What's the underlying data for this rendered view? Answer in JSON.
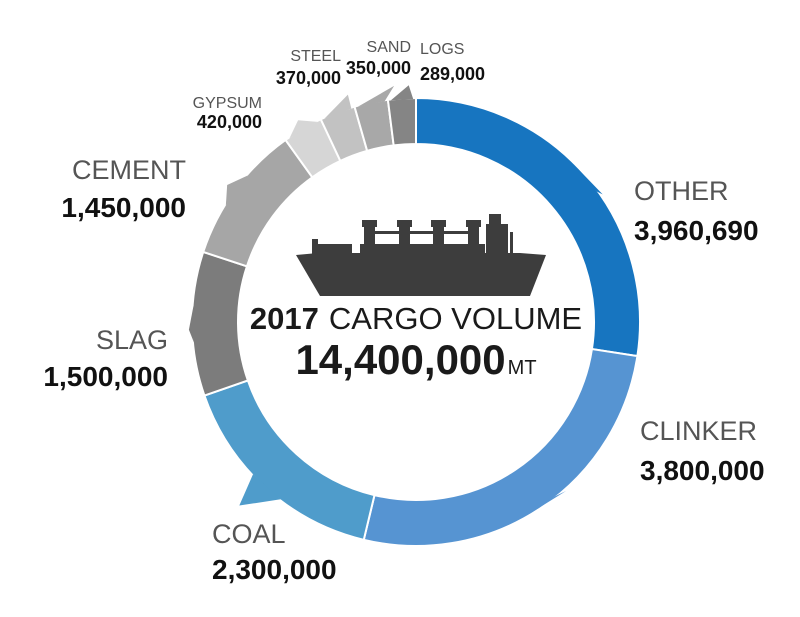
{
  "chart_data": {
    "type": "pie",
    "title_year": "2017",
    "title_rest": "CARGO VOLUME",
    "total": "14,400,000",
    "total_unit": "MT",
    "slices": [
      {
        "name": "OTHER",
        "value": 3960690,
        "label": "3,960,690",
        "color": "#1775c0"
      },
      {
        "name": "CLINKER",
        "value": 3800000,
        "label": "3,800,000",
        "color": "#5694d2"
      },
      {
        "name": "COAL",
        "value": 2300000,
        "label": "2,300,000",
        "color": "#4f9ccb"
      },
      {
        "name": "SLAG",
        "value": 1500000,
        "label": "1,500,000",
        "color": "#7c7c7c"
      },
      {
        "name": "CEMENT",
        "value": 1450000,
        "label": "1,450,000",
        "color": "#a6a6a6"
      },
      {
        "name": "GYPSUM",
        "value": 420000,
        "label": "420,000",
        "color": "#d6d6d6"
      },
      {
        "name": "STEEL",
        "value": 370000,
        "label": "370,000",
        "color": "#c2c2c2"
      },
      {
        "name": "SAND",
        "value": 350000,
        "label": "350,000",
        "color": "#a8a8a8"
      },
      {
        "name": "LOGS",
        "value": 289000,
        "label": "289,000",
        "color": "#858585"
      }
    ]
  }
}
